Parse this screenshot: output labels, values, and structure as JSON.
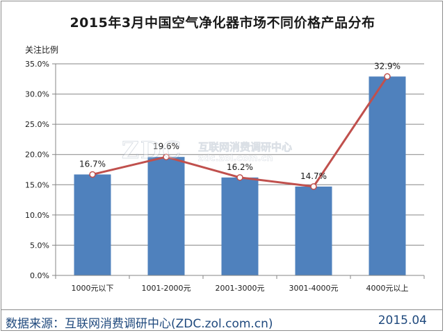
{
  "chart_data": {
    "type": "bar",
    "title": "2015年3月中国空气净化器市场不同价格产品分布",
    "ylabel": "关注比例",
    "xlabel": "",
    "categories": [
      "1000元以下",
      "1001-2000元",
      "2001-3000元",
      "3001-4000元",
      "4000元以上"
    ],
    "values": [
      16.7,
      19.6,
      16.2,
      14.7,
      32.9
    ],
    "data_labels": [
      "16.7%",
      "19.6%",
      "16.2%",
      "14.7%",
      "32.9%"
    ],
    "overlay_line": true,
    "ylim": [
      0,
      35
    ],
    "yticks": [
      0,
      5,
      10,
      15,
      20,
      25,
      30,
      35
    ],
    "ytick_labels": [
      "0.0%",
      "5.0%",
      "10.0%",
      "15.0%",
      "20.0%",
      "25.0%",
      "30.0%",
      "35.0%"
    ],
    "grid": true,
    "legend": "none",
    "colors": {
      "bar": "#4f81bd",
      "line": "#c0504d",
      "marker_fill": "#ffffff",
      "grid": "#868686"
    }
  },
  "watermark": {
    "logo": "ZDC",
    "name": "互联网消费调研中心",
    "url": "zdc.zol.com.cn"
  },
  "footer": {
    "source": "数据来源：互联网消费调研中心(ZDC.zol.com.cn)",
    "date": "2015.04"
  }
}
